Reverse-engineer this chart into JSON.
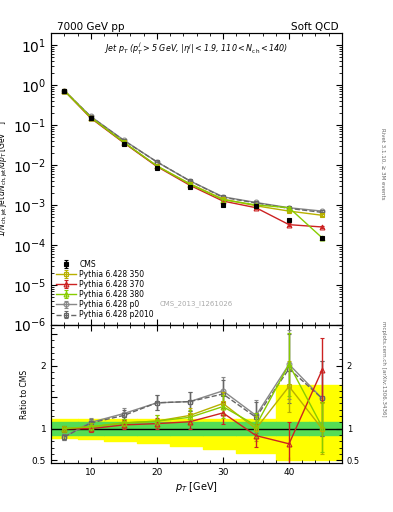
{
  "title_left": "7000 GeV pp",
  "title_right": "Soft QCD",
  "watermark": "CMS_2013_I1261026",
  "right_label": "Rivet 3.1.10, ≥ 3M events",
  "right_label2": "mcplots.cern.ch [arXiv:1306.3436]",
  "cms_pt": [
    6,
    10,
    15,
    20,
    25,
    30,
    35,
    40,
    45
  ],
  "cms_vals": [
    0.72,
    0.15,
    0.034,
    0.0085,
    0.0028,
    0.001,
    0.00095,
    0.00042,
    0.000145
  ],
  "cms_yerr": [
    0.04,
    0.008,
    0.002,
    0.0005,
    0.0002,
    8e-05,
    7e-05,
    3e-05,
    1e-05
  ],
  "py350_pt": [
    6,
    10,
    15,
    20,
    25,
    30,
    35,
    40,
    45
  ],
  "py350_vals": [
    0.73,
    0.155,
    0.037,
    0.0095,
    0.0034,
    0.0014,
    0.00095,
    0.0007,
    0.00055
  ],
  "py350_yerr": [
    0.02,
    0.005,
    0.001,
    0.0004,
    0.00015,
    7e-05,
    5e-05,
    4e-05,
    3e-05
  ],
  "py370_pt": [
    6,
    10,
    15,
    20,
    25,
    30,
    35,
    40,
    45
  ],
  "py370_vals": [
    0.73,
    0.15,
    0.036,
    0.0092,
    0.0031,
    0.00125,
    0.00085,
    0.00032,
    0.00028
  ],
  "py370_yerr": [
    0.02,
    0.005,
    0.001,
    0.0003,
    0.00013,
    6e-05,
    4e-05,
    3e-05,
    2e-05
  ],
  "py380_pt": [
    6,
    10,
    15,
    20,
    25,
    30,
    35,
    40,
    45
  ],
  "py380_vals": [
    0.73,
    0.155,
    0.037,
    0.0095,
    0.0033,
    0.00135,
    0.001,
    0.00085,
    0.00015
  ],
  "py380_yerr": [
    0.02,
    0.005,
    0.001,
    0.0004,
    0.00014,
    6e-05,
    5e-05,
    4e-05,
    2e-05
  ],
  "pyp0_pt": [
    6,
    10,
    15,
    20,
    25,
    30,
    35,
    40,
    45
  ],
  "pyp0_vals": [
    0.73,
    0.165,
    0.042,
    0.012,
    0.004,
    0.0016,
    0.00115,
    0.00085,
    0.0007
  ],
  "pyp0_yerr": [
    0.02,
    0.005,
    0.0012,
    0.0004,
    0.00015,
    7e-05,
    5e-05,
    4e-05,
    3e-05
  ],
  "pyp2010_pt": [
    6,
    10,
    15,
    20,
    25,
    30,
    35,
    40,
    45
  ],
  "pyp2010_vals": [
    0.73,
    0.163,
    0.041,
    0.012,
    0.004,
    0.00155,
    0.00112,
    0.00082,
    0.00065
  ],
  "pyp2010_yerr": [
    0.02,
    0.005,
    0.0012,
    0.0004,
    0.00015,
    7e-05,
    5e-05,
    4e-05,
    3e-05
  ],
  "ratio_350_pt": [
    6,
    10,
    15,
    20,
    25,
    30,
    35,
    40,
    45
  ],
  "ratio_350": [
    1.0,
    1.03,
    1.09,
    1.12,
    1.21,
    1.4,
    1.0,
    1.67,
    1.0
  ],
  "ratio_350_err": [
    0.05,
    0.06,
    0.07,
    0.09,
    0.12,
    0.18,
    0.2,
    0.4,
    0.4
  ],
  "ratio_370_pt": [
    6,
    10,
    15,
    20,
    25,
    30,
    35,
    40,
    45
  ],
  "ratio_370": [
    1.0,
    1.0,
    1.06,
    1.08,
    1.11,
    1.25,
    0.89,
    0.76,
    1.93
  ],
  "ratio_370_err": [
    0.05,
    0.06,
    0.07,
    0.09,
    0.12,
    0.18,
    0.18,
    0.35,
    0.5
  ],
  "ratio_380_pt": [
    6,
    10,
    15,
    20,
    25,
    30,
    35,
    40,
    45
  ],
  "ratio_380": [
    1.0,
    1.03,
    1.09,
    1.12,
    1.18,
    1.35,
    1.05,
    2.02,
    1.03
  ],
  "ratio_380_err": [
    0.05,
    0.06,
    0.07,
    0.09,
    0.12,
    0.18,
    0.2,
    0.5,
    0.4
  ],
  "ratio_p0_pt": [
    6,
    10,
    15,
    20,
    25,
    30,
    35,
    40,
    45
  ],
  "ratio_p0": [
    0.87,
    1.1,
    1.24,
    1.41,
    1.43,
    1.6,
    1.21,
    2.02,
    1.48
  ],
  "ratio_p0_err": [
    0.05,
    0.07,
    0.09,
    0.12,
    0.15,
    0.22,
    0.25,
    0.55,
    0.6
  ],
  "ratio_p2010_pt": [
    6,
    10,
    15,
    20,
    25,
    30,
    35,
    40,
    45
  ],
  "ratio_p2010": [
    0.87,
    1.09,
    1.21,
    1.41,
    1.43,
    1.55,
    1.18,
    1.95,
    1.48
  ],
  "ratio_p2010_err": [
    0.05,
    0.07,
    0.09,
    0.12,
    0.15,
    0.22,
    0.25,
    0.55,
    0.6
  ],
  "band_x_edges": [
    4,
    8,
    12,
    17,
    22,
    27,
    32,
    38,
    43,
    48
  ],
  "band_green_lo": [
    0.9,
    0.9,
    0.9,
    0.9,
    0.9,
    0.9,
    0.9,
    0.9,
    0.9
  ],
  "band_green_hi": [
    1.1,
    1.1,
    1.1,
    1.1,
    1.1,
    1.1,
    1.1,
    1.1,
    1.1
  ],
  "band_yellow_lo": [
    0.85,
    0.83,
    0.8,
    0.77,
    0.73,
    0.68,
    0.62,
    0.5,
    0.5
  ],
  "band_yellow_hi": [
    1.15,
    1.15,
    1.15,
    1.15,
    1.15,
    1.15,
    1.15,
    1.7,
    1.7
  ],
  "color_350": "#b8b000",
  "color_370": "#cc2222",
  "color_380": "#88cc00",
  "color_p0": "#888888",
  "color_p2010": "#666666",
  "color_cms": "#000000",
  "xlim": [
    4,
    48
  ],
  "ylim_main": [
    1e-06,
    20
  ],
  "ylim_ratio": [
    0.45,
    2.65
  ]
}
